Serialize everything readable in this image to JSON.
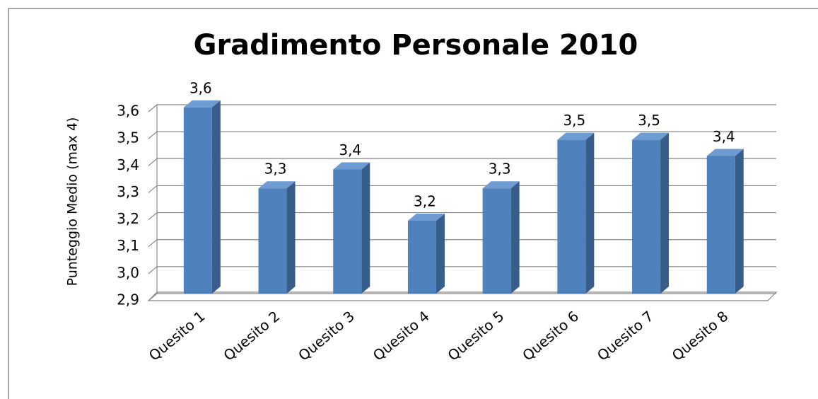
{
  "chart_data": {
    "type": "bar3d",
    "title": "Gradimento Personale 2010",
    "y_label": "Punteggio Medio (max 4)",
    "categories": [
      "Quesito 1",
      "Quesito 2",
      "Quesito 3",
      "Quesito 4",
      "Quesito 5",
      "Quesito 6",
      "Quesito 7",
      "Quesito 8"
    ],
    "values": [
      3.59,
      3.29,
      3.36,
      3.17,
      3.29,
      3.47,
      3.47,
      3.41
    ],
    "value_labels": [
      "3,6",
      "3,3",
      "3,4",
      "3,2",
      "3,3",
      "3,5",
      "3,5",
      "3,4"
    ],
    "color": "#4f81bd",
    "ylim": [
      2.9,
      3.6
    ],
    "yticks": [
      {
        "value": 2.9,
        "label": "2,9"
      },
      {
        "value": 3.0,
        "label": "3,0"
      },
      {
        "value": 3.1,
        "label": "3,1"
      },
      {
        "value": 3.2,
        "label": "3,2"
      },
      {
        "value": 3.3,
        "label": "3,3"
      },
      {
        "value": 3.4,
        "label": "3,4"
      },
      {
        "value": 3.5,
        "label": "3,5"
      },
      {
        "value": 3.6,
        "label": "3,6"
      }
    ],
    "grid": true
  }
}
